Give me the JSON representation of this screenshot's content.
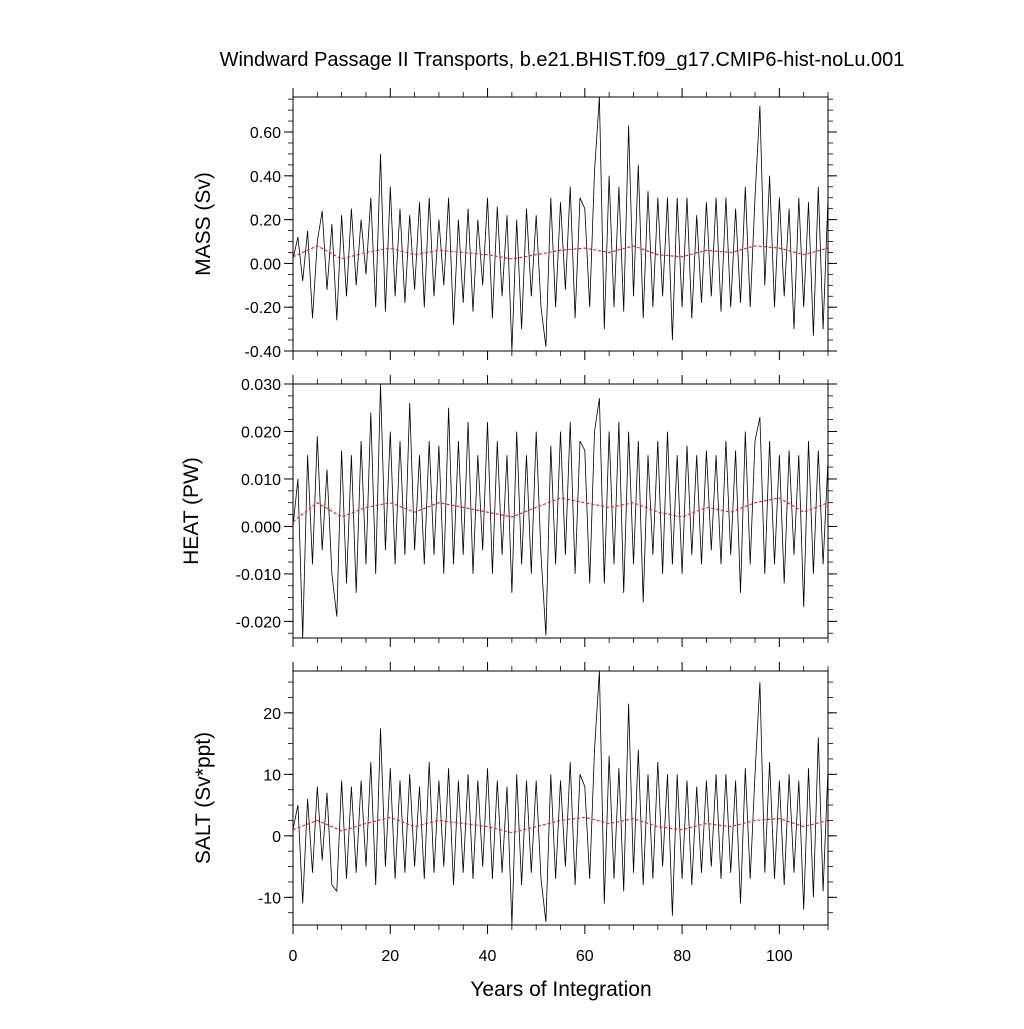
{
  "title": "Windward Passage II Transports, b.e21.BHIST.f09_g17.CMIP6-hist-noLu.001",
  "xlabel": "Years of Integration",
  "colors": {
    "raw": "#000000",
    "smooth": "#e0211c",
    "frame": "#000000"
  },
  "chart_data": [
    {
      "type": "line",
      "panel": "mass",
      "ylabel": "MASS (Sv)",
      "xlim": [
        0,
        110
      ],
      "ylim": [
        -0.4,
        0.76
      ],
      "xticks": [
        0,
        20,
        40,
        60,
        80,
        100
      ],
      "yticks": [
        -0.4,
        -0.2,
        0.0,
        0.2,
        0.4,
        0.6
      ],
      "ytick_labels": [
        "-0.40",
        "-0.20",
        "0.00",
        "0.20",
        "0.40",
        "0.60"
      ],
      "grid": false,
      "series": [
        {
          "x": [
            0,
            1,
            2,
            3,
            4,
            5,
            6,
            7,
            8,
            9,
            10,
            11,
            12,
            13,
            14,
            15,
            16,
            17,
            18,
            19,
            20,
            21,
            22,
            23,
            24,
            25,
            26,
            27,
            28,
            29,
            30,
            31,
            32,
            33,
            34,
            35,
            36,
            37,
            38,
            39,
            40,
            41,
            42,
            43,
            44,
            45,
            46,
            47,
            48,
            49,
            50,
            51,
            52,
            53,
            54,
            55,
            56,
            57,
            58,
            59,
            60,
            61,
            62,
            63,
            64,
            65,
            66,
            67,
            68,
            69,
            70,
            71,
            72,
            73,
            74,
            75,
            76,
            77,
            78,
            79,
            80,
            81,
            82,
            83,
            84,
            85,
            86,
            87,
            88,
            89,
            90,
            91,
            92,
            93,
            94,
            95,
            96,
            97,
            98,
            99,
            100,
            101,
            102,
            103,
            104,
            105,
            106,
            107,
            108,
            109,
            110
          ],
          "y": [
            0.02,
            0.12,
            -0.08,
            0.15,
            -0.25,
            0.1,
            0.24,
            -0.12,
            0.18,
            -0.26,
            0.22,
            -0.15,
            0.25,
            -0.1,
            0.2,
            -0.05,
            0.3,
            -0.2,
            0.5,
            -0.22,
            0.35,
            -0.15,
            0.25,
            -0.18,
            0.22,
            -0.12,
            0.28,
            -0.2,
            0.3,
            -0.15,
            0.2,
            -0.1,
            0.3,
            -0.28,
            0.2,
            -0.18,
            0.25,
            -0.22,
            0.2,
            -0.1,
            0.3,
            -0.25,
            0.26,
            -0.15,
            0.22,
            -0.4,
            0.2,
            -0.3,
            0.25,
            -0.15,
            0.22,
            -0.2,
            -0.38,
            0.3,
            -0.2,
            0.28,
            -0.12,
            0.35,
            -0.25,
            0.3,
            0.25,
            -0.2,
            0.42,
            0.76,
            -0.3,
            0.4,
            -0.2,
            0.35,
            -0.22,
            0.63,
            -0.15,
            0.45,
            -0.25,
            0.33,
            -0.2,
            0.3,
            -0.15,
            0.3,
            -0.35,
            0.3,
            -0.2,
            0.3,
            -0.25,
            0.22,
            -0.18,
            0.28,
            -0.15,
            0.3,
            -0.22,
            0.3,
            -0.2,
            0.25,
            -0.18,
            0.35,
            -0.2,
            0.3,
            0.72,
            -0.1,
            0.4,
            -0.2,
            0.3,
            -0.15,
            0.25,
            -0.3,
            0.3,
            -0.2,
            0.28,
            -0.33,
            0.35,
            -0.3,
            0.3
          ]
        },
        {
          "x": [
            0,
            5,
            10,
            15,
            20,
            25,
            30,
            35,
            40,
            45,
            50,
            55,
            60,
            65,
            70,
            75,
            80,
            85,
            90,
            95,
            100,
            105,
            110
          ],
          "y": [
            0.03,
            0.08,
            0.02,
            0.05,
            0.07,
            0.04,
            0.06,
            0.05,
            0.04,
            0.02,
            0.04,
            0.06,
            0.07,
            0.05,
            0.08,
            0.04,
            0.03,
            0.06,
            0.05,
            0.08,
            0.07,
            0.04,
            0.07
          ]
        }
      ]
    },
    {
      "type": "line",
      "panel": "heat",
      "ylabel": "HEAT (PW)",
      "xlim": [
        0,
        110
      ],
      "ylim": [
        -0.0235,
        0.03
      ],
      "xticks": [
        0,
        20,
        40,
        60,
        80,
        100
      ],
      "yticks": [
        -0.02,
        -0.01,
        0.0,
        0.01,
        0.02,
        0.03
      ],
      "ytick_labels": [
        "-0.020",
        "-0.010",
        "0.000",
        "0.010",
        "0.020",
        "0.030"
      ],
      "grid": false,
      "series": [
        {
          "x": [
            0,
            1,
            2,
            3,
            4,
            5,
            6,
            7,
            8,
            9,
            10,
            11,
            12,
            13,
            14,
            15,
            16,
            17,
            18,
            19,
            20,
            21,
            22,
            23,
            24,
            25,
            26,
            27,
            28,
            29,
            30,
            31,
            32,
            33,
            34,
            35,
            36,
            37,
            38,
            39,
            40,
            41,
            42,
            43,
            44,
            45,
            46,
            47,
            48,
            49,
            50,
            51,
            52,
            53,
            54,
            55,
            56,
            57,
            58,
            59,
            60,
            61,
            62,
            63,
            64,
            65,
            66,
            67,
            68,
            69,
            70,
            71,
            72,
            73,
            74,
            75,
            76,
            77,
            78,
            79,
            80,
            81,
            82,
            83,
            84,
            85,
            86,
            87,
            88,
            89,
            90,
            91,
            92,
            93,
            94,
            95,
            96,
            97,
            98,
            99,
            100,
            101,
            102,
            103,
            104,
            105,
            106,
            107,
            108,
            109,
            110
          ],
          "y": [
            0.0,
            0.01,
            -0.0235,
            0.015,
            -0.008,
            0.019,
            -0.005,
            0.012,
            -0.01,
            -0.019,
            0.016,
            -0.012,
            0.015,
            -0.014,
            0.018,
            -0.008,
            0.024,
            -0.01,
            0.03,
            -0.005,
            0.02,
            -0.008,
            0.018,
            -0.006,
            0.026,
            -0.005,
            0.015,
            -0.008,
            0.018,
            -0.006,
            0.017,
            -0.01,
            0.025,
            -0.008,
            0.018,
            -0.006,
            0.022,
            -0.01,
            0.015,
            -0.005,
            0.022,
            -0.01,
            0.018,
            -0.006,
            0.015,
            -0.014,
            0.02,
            -0.008,
            0.015,
            -0.01,
            0.02,
            -0.006,
            -0.023,
            0.017,
            -0.008,
            0.02,
            -0.006,
            0.022,
            -0.01,
            0.018,
            0.016,
            -0.012,
            0.02,
            0.027,
            -0.012,
            0.02,
            -0.008,
            0.022,
            -0.014,
            0.02,
            -0.008,
            0.018,
            -0.016,
            0.015,
            -0.006,
            0.018,
            -0.01,
            0.02,
            -0.008,
            0.015,
            -0.01,
            0.017,
            -0.006,
            0.015,
            -0.008,
            0.016,
            -0.005,
            0.015,
            -0.008,
            0.018,
            -0.006,
            0.016,
            -0.014,
            0.02,
            -0.008,
            0.018,
            0.023,
            -0.01,
            0.018,
            -0.008,
            0.015,
            -0.012,
            0.016,
            -0.006,
            0.015,
            -0.017,
            0.018,
            -0.01,
            0.016,
            -0.008,
            0.014
          ]
        },
        {
          "x": [
            0,
            5,
            10,
            15,
            20,
            25,
            30,
            35,
            40,
            45,
            50,
            55,
            60,
            65,
            70,
            75,
            80,
            85,
            90,
            95,
            100,
            105,
            110
          ],
          "y": [
            0.001,
            0.005,
            0.002,
            0.004,
            0.005,
            0.003,
            0.005,
            0.004,
            0.003,
            0.002,
            0.004,
            0.006,
            0.005,
            0.004,
            0.005,
            0.003,
            0.002,
            0.004,
            0.003,
            0.005,
            0.006,
            0.003,
            0.005
          ]
        }
      ]
    },
    {
      "type": "line",
      "panel": "salt",
      "ylabel": "SALT (Sv*ppt)",
      "xlim": [
        0,
        110
      ],
      "ylim": [
        -14.5,
        26.8
      ],
      "xticks": [
        0,
        20,
        40,
        60,
        80,
        100
      ],
      "yticks": [
        -10,
        0,
        10,
        20
      ],
      "ytick_labels": [
        "-10",
        "0",
        "10",
        "20"
      ],
      "grid": false,
      "series": [
        {
          "x": [
            0,
            1,
            2,
            3,
            4,
            5,
            6,
            7,
            8,
            9,
            10,
            11,
            12,
            13,
            14,
            15,
            16,
            17,
            18,
            19,
            20,
            21,
            22,
            23,
            24,
            25,
            26,
            27,
            28,
            29,
            30,
            31,
            32,
            33,
            34,
            35,
            36,
            37,
            38,
            39,
            40,
            41,
            42,
            43,
            44,
            45,
            46,
            47,
            48,
            49,
            50,
            51,
            52,
            53,
            54,
            55,
            56,
            57,
            58,
            59,
            60,
            61,
            62,
            63,
            64,
            65,
            66,
            67,
            68,
            69,
            70,
            71,
            72,
            73,
            74,
            75,
            76,
            77,
            78,
            79,
            80,
            81,
            82,
            83,
            84,
            85,
            86,
            87,
            88,
            89,
            90,
            91,
            92,
            93,
            94,
            95,
            96,
            97,
            98,
            99,
            100,
            101,
            102,
            103,
            104,
            105,
            106,
            107,
            108,
            109,
            110
          ],
          "y": [
            1,
            5,
            -11,
            6,
            -6,
            8,
            -4,
            7,
            -8,
            -9,
            9,
            -7,
            8,
            -6,
            9,
            -5,
            12,
            -8,
            17.5,
            -5,
            11,
            -7,
            9,
            -6,
            10,
            -5,
            8,
            -7,
            12,
            -6,
            9,
            -5,
            11,
            -8,
            9,
            -6,
            10,
            -7,
            9,
            -5,
            11,
            -7,
            9,
            -6,
            8,
            -14.5,
            10,
            -8,
            9,
            -6,
            9,
            -7,
            -14,
            10,
            -7,
            9,
            -5,
            12,
            -8,
            10,
            8,
            -7,
            14,
            26.8,
            -11,
            13,
            -7,
            11,
            -9,
            21.5,
            -6,
            14,
            -8,
            10,
            -7,
            12,
            -5,
            10,
            -13,
            10,
            -7,
            9,
            -8,
            8,
            -6,
            9,
            -5,
            10,
            -7,
            10,
            -6,
            9,
            -11,
            11,
            -7,
            10,
            25,
            -6,
            12,
            -7,
            9,
            -8,
            10,
            -6,
            9,
            -12,
            11,
            -10,
            16,
            -9,
            11
          ]
        },
        {
          "x": [
            0,
            5,
            10,
            15,
            20,
            25,
            30,
            35,
            40,
            45,
            50,
            55,
            60,
            65,
            70,
            75,
            80,
            85,
            90,
            95,
            100,
            105,
            110
          ],
          "y": [
            1,
            2.5,
            0.8,
            2,
            3,
            1.5,
            2.5,
            2,
            1.5,
            0.5,
            1.5,
            2.5,
            3,
            2,
            2.8,
            1.5,
            1,
            2,
            1.5,
            2.5,
            2.8,
            1.5,
            2.5
          ]
        }
      ]
    }
  ]
}
